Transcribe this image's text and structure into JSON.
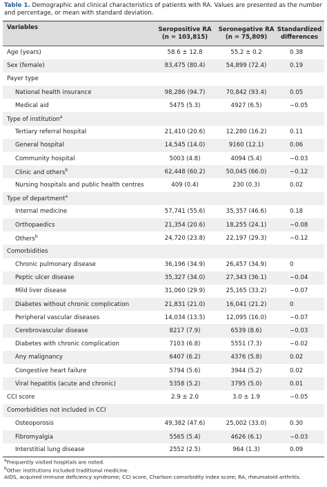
{
  "caption": {
    "label": "Table 1.",
    "text": "Demographic and clinical characteristics of patients with RA. Values are presented as the number and percentage, or mean with standard deviation."
  },
  "table": {
    "header": [
      [
        "Variables"
      ],
      [
        "Seropositive RA",
        "(n = 103,815)"
      ],
      [
        "Seronegative RA",
        "(n = 75,809)"
      ],
      [
        "Standardized",
        "differences"
      ]
    ],
    "body": [
      {
        "label": "Age (years)",
        "cells": [
          "58.6 ± 12.8",
          "55.2 ± 0.2",
          "0.38"
        ]
      },
      {
        "label": "Sex (female)",
        "cells": [
          "83,475 (80.4)",
          "54,899 (72.4)",
          "0.19"
        ]
      },
      {
        "section": "Payer type",
        "rows": [
          {
            "label": "National health insurance",
            "cells": [
              "98,286 (94.7)",
              "70,842 (93.4)",
              "0.05"
            ]
          },
          {
            "label": "Medical aid",
            "cells": [
              "5475 (5.3)",
              "4927 (6.5)",
              "−0.05"
            ]
          }
        ]
      },
      {
        "section": "Type of institution",
        "sup": "a",
        "rows": [
          {
            "label": "Tertiary referral hospital",
            "cells": [
              "21,410 (20.6)",
              "12,280 (16.2)",
              "0.11"
            ]
          },
          {
            "label": "General hospital",
            "cells": [
              "14,545 (14.0)",
              "9160 (12.1)",
              "0.06"
            ]
          },
          {
            "label": "Community hospital",
            "cells": [
              "5003 (4.8)",
              "4094 (5.4)",
              "−0.03"
            ]
          },
          {
            "label": "Clinic and others",
            "sup": "b",
            "cells": [
              "62,448 (60.2)",
              "50,045 (66.0)",
              "−0.12"
            ]
          },
          {
            "label": "Nursing hospitals and public health centres",
            "cells": [
              "409 (0.4)",
              "230 (0.3)",
              "0.02"
            ]
          }
        ]
      },
      {
        "section": "Type of department",
        "sup": "a",
        "rows": [
          {
            "label": "Internal medicine",
            "cells": [
              "57,741 (55.6)",
              "35,357 (46.6)",
              "0.18"
            ]
          },
          {
            "label": "Orthopaedics",
            "cells": [
              "21,354 (20.6)",
              "18,255 (24.1)",
              "−0.08"
            ]
          },
          {
            "label": "Others",
            "sup": "b",
            "cells": [
              "24,720 (23.8)",
              "22,197 (29.3)",
              "−0.12"
            ]
          }
        ]
      },
      {
        "section": "Comorbidities",
        "rows": [
          {
            "label": "Chronic pulmonary disease",
            "cells": [
              "36,196 (34.9)",
              "26,457 (34.9)",
              "0"
            ]
          },
          {
            "label": "Peptic ulcer disease",
            "cells": [
              "35,327 (34.0)",
              "27,343 (36.1)",
              "−0.04"
            ]
          },
          {
            "label": "Mild liver disease",
            "cells": [
              "31,060 (29.9)",
              "25,165 (33.2)",
              "−0.07"
            ]
          },
          {
            "label": "Diabetes without chronic complication",
            "cells": [
              "21,831 (21.0)",
              "16,041 (21.2)",
              "0"
            ]
          },
          {
            "label": "Peripheral vascular diseases",
            "cells": [
              "14,034 (13.5)",
              "12,095 (16.0)",
              "−0.07"
            ]
          },
          {
            "label": "Cerebrovascular disease",
            "cells": [
              "8217 (7.9)",
              "6539 (8.6)",
              "−0.03"
            ]
          },
          {
            "label": "Diabetes with chronic complication",
            "cells": [
              "7103 (6.8)",
              "5551 (7.3)",
              "−0.02"
            ]
          },
          {
            "label": "Any malignancy",
            "cells": [
              "6407 (6.2)",
              "4376 (5.8)",
              "0.02"
            ]
          },
          {
            "label": "Congestive heart failure",
            "cells": [
              "5794 (5.6)",
              "3944 (5.2)",
              "0.02"
            ]
          },
          {
            "label": "Viral hepatitis (acute and chronic)",
            "cells": [
              "5358 (5.2)",
              "3795 (5.0)",
              "0.01"
            ]
          }
        ]
      },
      {
        "label": "CCI score",
        "cells": [
          "2.9 ± 2.0",
          "3.0 ± 1.9",
          "−0.05"
        ]
      },
      {
        "section": "Comorbidities not included in CCI",
        "rows": [
          {
            "label": "Osteoporosis",
            "cells": [
              "49,382 (47.6)",
              "25,002 (33.0)",
              "0.30"
            ]
          },
          {
            "label": "Fibromyalgia",
            "cells": [
              "5565 (5.4)",
              "4626 (6.1)",
              "−0.03"
            ]
          },
          {
            "label": "Interstitial lung disease",
            "cells": [
              "2552 (2.5)",
              "964 (1.3)",
              "0.09"
            ]
          }
        ]
      }
    ]
  },
  "footnotes": [
    {
      "sup": "a",
      "text": "Frequently visited hospitals are noted."
    },
    {
      "sup": "b",
      "text": "Other institutions included traditional medicine."
    },
    {
      "text": "AIDS, acquired immune deficiency syndrome; CCI score, Charlson comorbidity index score; RA, rheumatoid arthritis."
    }
  ]
}
